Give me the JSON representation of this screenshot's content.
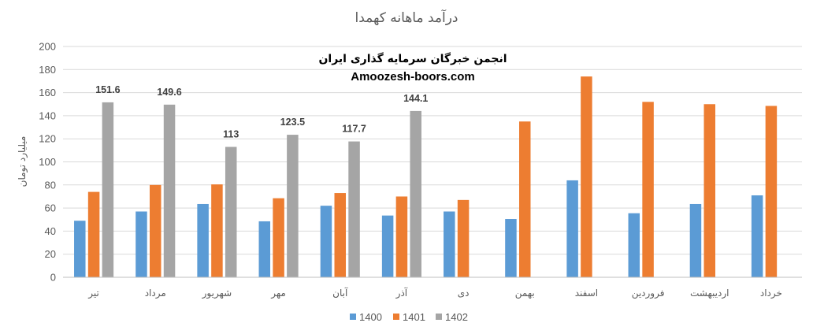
{
  "chart_data": {
    "type": "bar",
    "title": "درآمد ماهانه کهمدا",
    "ylabel": "میلیارد تومان",
    "xlabel": "",
    "ylim": [
      0,
      200
    ],
    "ytick_step": 20,
    "grid": true,
    "legend_position": "bottom",
    "categories": [
      "تیر",
      "مرداد",
      "شهریور",
      "مهر",
      "آبان",
      "آذر",
      "دی",
      "بهمن",
      "اسفند",
      "فروردین",
      "اردیبهشت",
      "خرداد"
    ],
    "series": [
      {
        "name": "1400",
        "color": "#5b9bd5",
        "values": [
          49,
          57,
          63.5,
          48.5,
          62,
          53.5,
          57,
          50.5,
          84,
          55.5,
          63.5,
          71
        ],
        "show_labels": false
      },
      {
        "name": "1401",
        "color": "#ed7d31",
        "values": [
          74,
          80,
          80.5,
          68.5,
          73,
          70,
          67,
          135,
          174,
          152,
          150,
          148.5
        ],
        "show_labels": false
      },
      {
        "name": "1402",
        "color": "#a5a5a5",
        "values": [
          151.6,
          149.6,
          113,
          123.5,
          117.7,
          144.1,
          null,
          null,
          null,
          null,
          null,
          null
        ],
        "show_labels": true
      }
    ]
  },
  "watermark": {
    "line1": "انجمن خبرگان سرمایه گذاری ایران",
    "line2": "Amoozesh-boors.com"
  }
}
